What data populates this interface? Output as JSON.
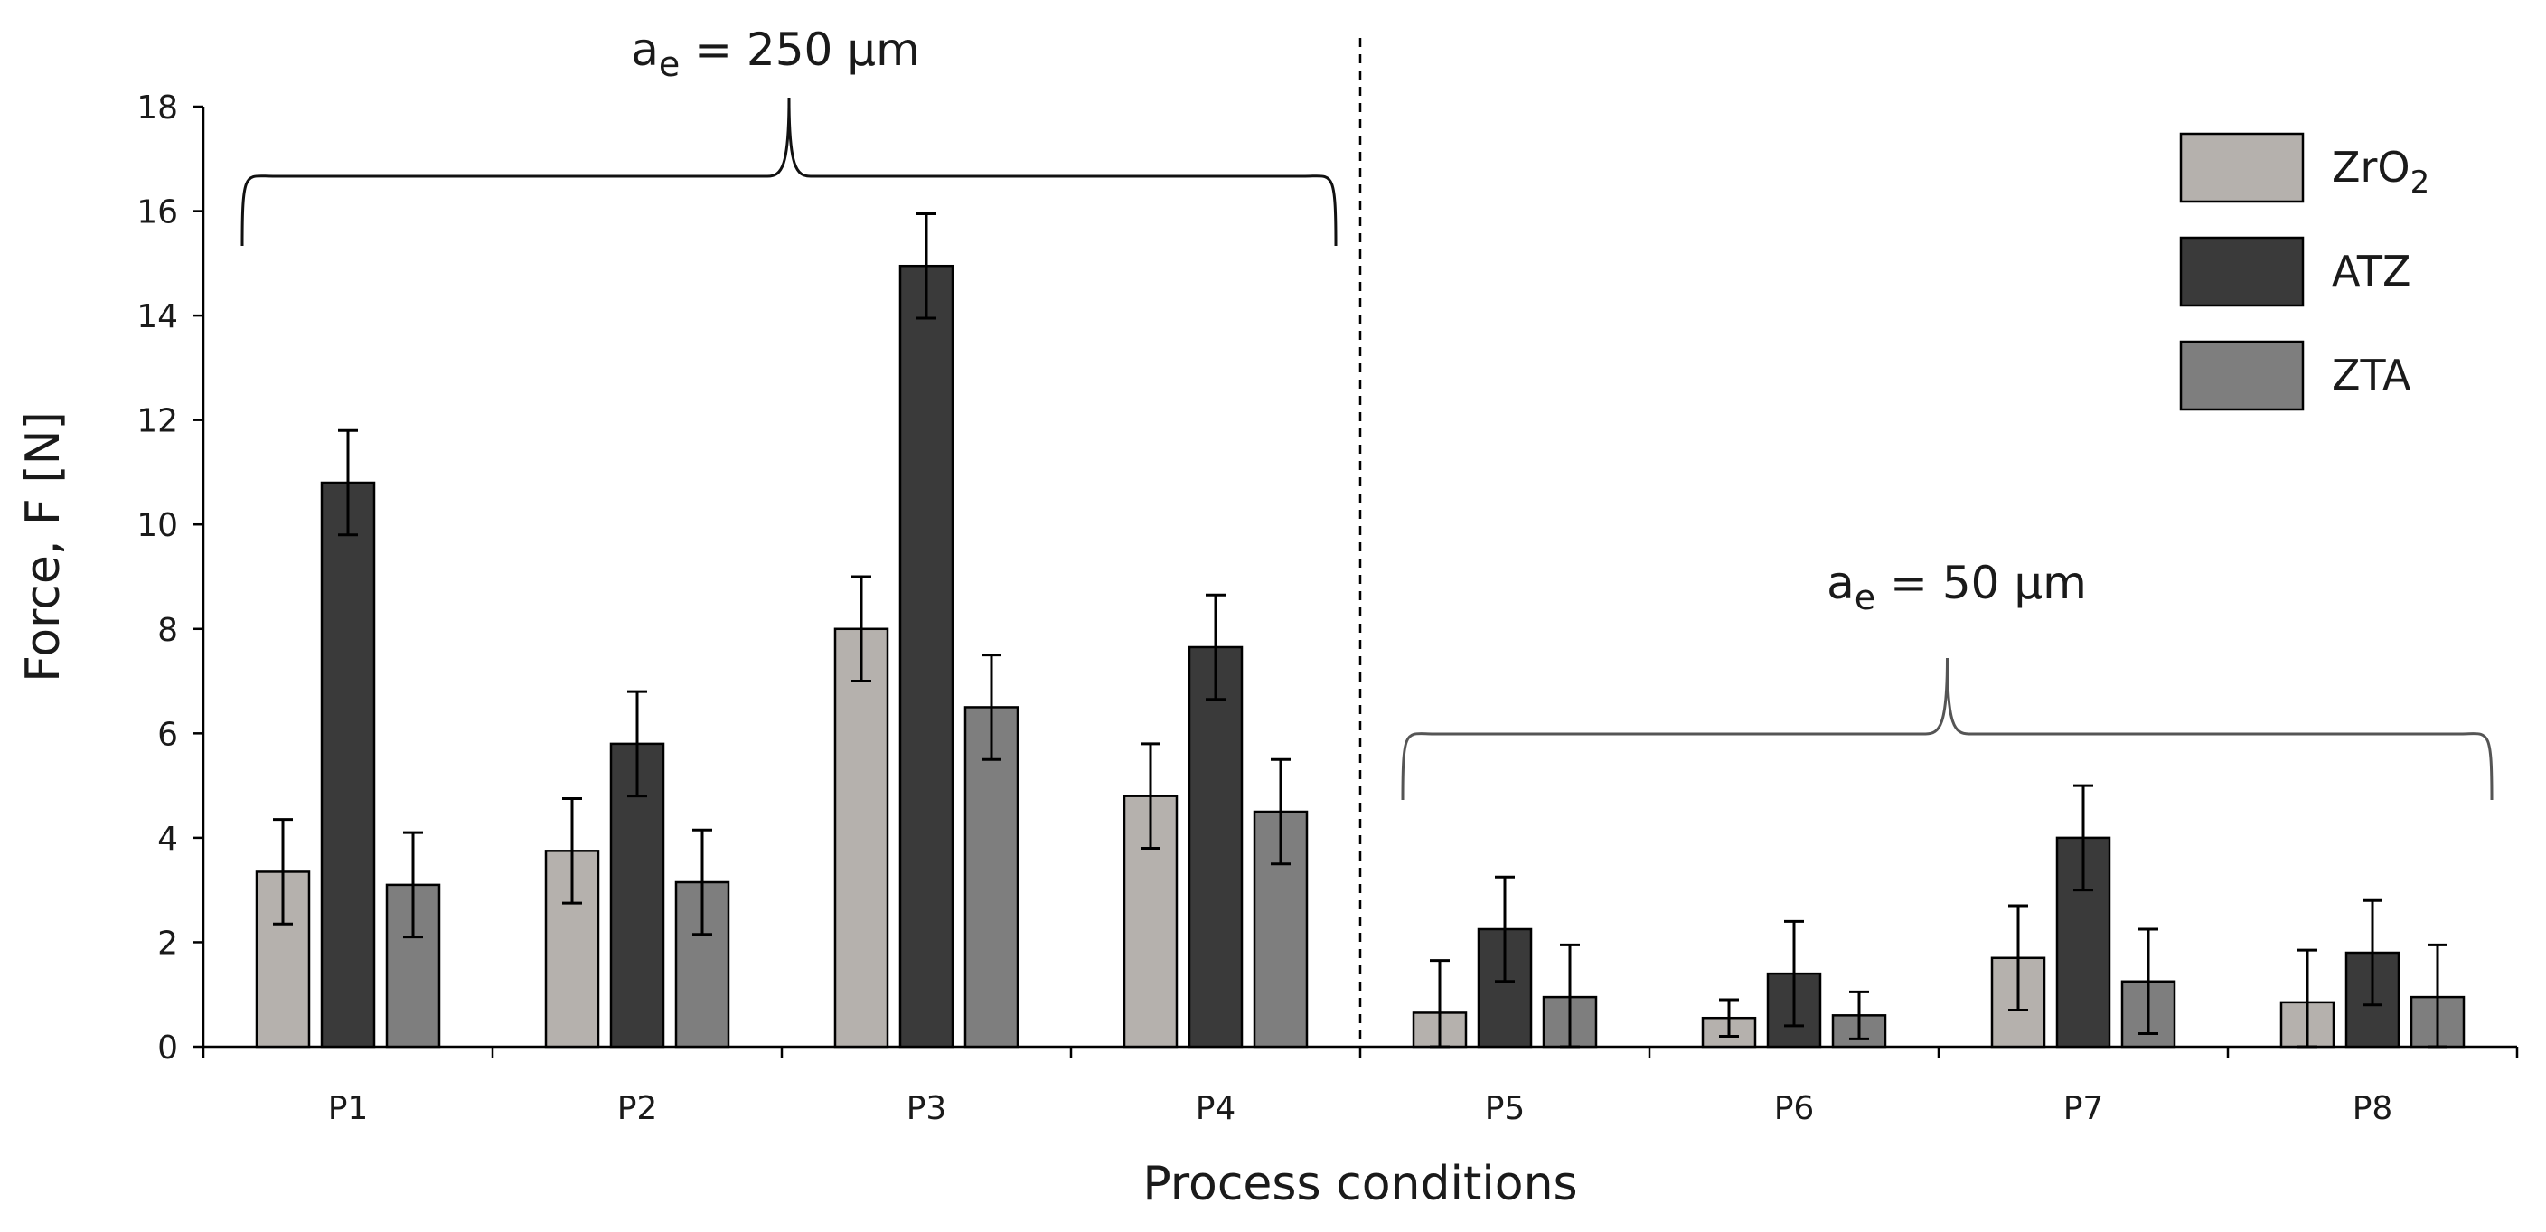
{
  "chart_data": {
    "type": "bar",
    "title": "",
    "xlabel": "Process conditions",
    "ylabel": "Force, F [N]",
    "ylim": [
      0,
      18
    ],
    "yticks": [
      0,
      2,
      4,
      6,
      8,
      10,
      12,
      14,
      16,
      18
    ],
    "categories": [
      "P1",
      "P2",
      "P3",
      "P4",
      "P5",
      "P6",
      "P7",
      "P8"
    ],
    "series": [
      {
        "name": "ZrO",
        "subscript": "2",
        "color": "#b5b1ad",
        "values": [
          3.35,
          3.75,
          8.0,
          4.8,
          0.65,
          0.55,
          1.7,
          0.85
        ],
        "errors": [
          1.0,
          1.0,
          1.0,
          1.0,
          1.0,
          0.35,
          1.0,
          1.0
        ]
      },
      {
        "name": "ATZ",
        "subscript": "",
        "color": "#3a3a3a",
        "values": [
          10.8,
          5.8,
          14.95,
          7.65,
          2.25,
          1.4,
          4.0,
          1.8
        ],
        "errors": [
          1.0,
          1.0,
          1.0,
          1.0,
          1.0,
          1.0,
          1.0,
          1.0
        ]
      },
      {
        "name": "ZTA",
        "subscript": "",
        "color": "#7e7e7e",
        "values": [
          3.1,
          3.15,
          6.5,
          4.5,
          0.95,
          0.6,
          1.25,
          0.95
        ],
        "errors": [
          1.0,
          1.0,
          1.0,
          1.0,
          1.0,
          0.45,
          1.0,
          1.0
        ]
      }
    ],
    "legend_position": "top-right",
    "annotations": [
      {
        "id": "ae-250",
        "base": "a",
        "sub": "e",
        "rest": " = 250 µm",
        "spans": [
          "P1",
          "P2",
          "P3",
          "P4"
        ]
      },
      {
        "id": "ae-50",
        "base": "a",
        "sub": "e",
        "rest": " = 50 µm",
        "spans": [
          "P5",
          "P6",
          "P7",
          "P8"
        ]
      }
    ],
    "divider": "dashed vertical line between P4 and P5"
  }
}
